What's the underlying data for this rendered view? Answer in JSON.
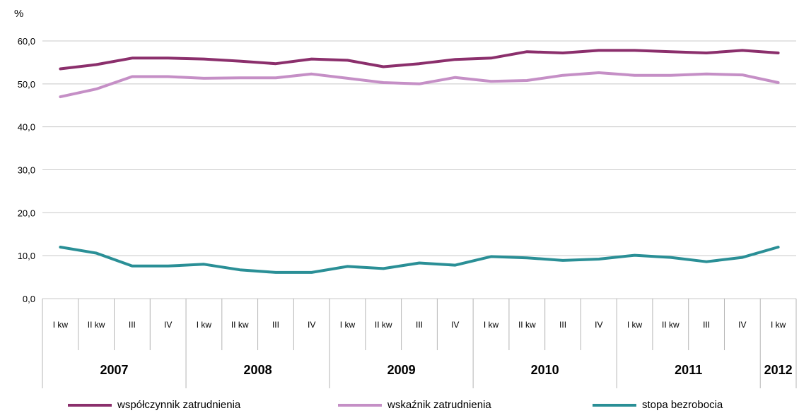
{
  "chart_data": {
    "type": "line",
    "ylabel": "%",
    "ylim": [
      0,
      60
    ],
    "yticks": [
      "0,0",
      "10,0",
      "20,0",
      "30,0",
      "40,0",
      "50,0",
      "60,0"
    ],
    "grid": true,
    "legend_position": "bottom",
    "categories": [
      "I kw",
      "II kw",
      "III",
      "IV",
      "I kw",
      "II kw",
      "III",
      "IV",
      "I kw",
      "II kw",
      "III",
      "IV",
      "I kw",
      "II kw",
      "III",
      "IV",
      "I kw",
      "II kw",
      "III",
      "IV",
      "I kw"
    ],
    "year_groups": [
      {
        "label": "2007",
        "count": 4
      },
      {
        "label": "2008",
        "count": 4
      },
      {
        "label": "2009",
        "count": 4
      },
      {
        "label": "2010",
        "count": 4
      },
      {
        "label": "2011",
        "count": 4
      },
      {
        "label": "2012",
        "count": 1
      }
    ],
    "series": [
      {
        "name": "współczynnik zatrudnienia",
        "color": "#8b2f6c",
        "values": [
          53.5,
          54.5,
          56.0,
          56.0,
          55.8,
          55.3,
          54.7,
          55.8,
          55.5,
          54.0,
          54.7,
          55.7,
          56.0,
          57.5,
          57.2,
          57.8,
          57.8,
          57.5,
          57.2,
          57.8,
          57.2
        ]
      },
      {
        "name": "wskaźnik zatrudnienia",
        "color": "#c58fc6",
        "values": [
          47.0,
          48.8,
          51.7,
          51.7,
          51.3,
          51.4,
          51.4,
          52.3,
          51.3,
          50.3,
          50.0,
          51.5,
          50.6,
          50.8,
          52.0,
          52.6,
          52.0,
          52.0,
          52.3,
          52.1,
          50.3
        ]
      },
      {
        "name": "stopa bezrobocia",
        "color": "#2a8f96",
        "values": [
          12.0,
          10.6,
          7.6,
          7.6,
          8.0,
          6.7,
          6.1,
          6.1,
          7.5,
          7.0,
          8.3,
          7.8,
          9.8,
          9.5,
          8.9,
          9.2,
          10.1,
          9.6,
          8.6,
          9.6,
          12.0
        ]
      }
    ]
  }
}
